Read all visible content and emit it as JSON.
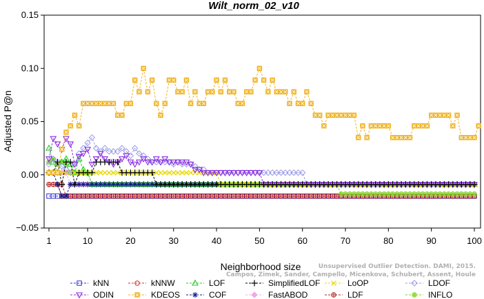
{
  "chart_data": {
    "type": "line",
    "title": "Wilt_norm_02_v10",
    "xlabel": "Neighborhood size",
    "ylabel": "Adjusted P@n",
    "xlim": [
      0,
      101
    ],
    "ylim": [
      -0.05,
      0.15
    ],
    "x_ticks": [
      1,
      10,
      20,
      30,
      40,
      50,
      60,
      70,
      80,
      90,
      100
    ],
    "y_ticks": [
      -0.05,
      0.0,
      0.05,
      0.1,
      0.15
    ],
    "y_tick_labels": [
      "−0.05",
      "0.00",
      "0.05",
      "0.10",
      "0.15"
    ],
    "x_tick_labels": [
      "1",
      "10",
      "20",
      "30",
      "40",
      "50",
      "60",
      "70",
      "80",
      "90",
      "100"
    ],
    "grid": false,
    "legend_position": "bottom",
    "watermark_lines": [
      "Unsupervised Outlier Detection. DAMI, 2015.",
      "Campos, Zimek, Sander, Campello, Micenkova, Schubert, Assent, Houle"
    ],
    "series": [
      {
        "name": "kNN",
        "color": "#2b2bd6",
        "marker": "square",
        "segments": [
          [
            1,
            100,
            -0.02
          ]
        ]
      },
      {
        "name": "kNNW",
        "color": "#d42a2a",
        "marker": "circle",
        "segments": [
          [
            1,
            3,
            -0.009
          ],
          [
            4,
            100,
            -0.02
          ]
        ]
      },
      {
        "name": "LOF",
        "color": "#22cc22",
        "marker": "triangle-up",
        "points": [
          [
            1,
            0.025
          ],
          [
            2,
            0.012
          ],
          [
            3,
            0.002
          ],
          [
            4,
            0.012
          ],
          [
            5,
            0.015
          ],
          [
            6,
            0.01
          ],
          [
            7,
            0.002
          ],
          [
            8,
            0.015
          ],
          [
            9,
            0.005
          ],
          [
            10,
            0.002
          ]
        ],
        "segments": [
          [
            11,
            100,
            -0.009
          ]
        ]
      },
      {
        "name": "SimplifiedLOF",
        "color": "#000000",
        "marker": "plus",
        "points": [
          [
            1,
            0.002
          ],
          [
            2,
            0.002
          ],
          [
            3,
            0.012
          ],
          [
            4,
            -0.009
          ],
          [
            5,
            0.012
          ],
          [
            6,
            0.012
          ],
          [
            7,
            -0.009
          ],
          [
            8,
            0.002
          ],
          [
            9,
            0.002
          ],
          [
            10,
            0.002
          ],
          [
            11,
            0.002
          ],
          [
            12,
            0.012
          ],
          [
            13,
            0.012
          ],
          [
            14,
            0.012
          ],
          [
            15,
            0.012
          ],
          [
            16,
            0.012
          ],
          [
            17,
            0.012
          ],
          [
            18,
            0.002
          ],
          [
            19,
            0.002
          ],
          [
            20,
            0.002
          ],
          [
            21,
            0.002
          ],
          [
            22,
            0.002
          ],
          [
            23,
            0.002
          ],
          [
            24,
            0.002
          ],
          [
            25,
            0.002
          ]
        ],
        "segments": [
          [
            26,
            100,
            -0.009
          ]
        ]
      },
      {
        "name": "LoOP",
        "color": "#e6d800",
        "marker": "x",
        "segments": [
          [
            1,
            28,
            0.002
          ],
          [
            29,
            40,
            0.002
          ],
          [
            41,
            100,
            -0.009
          ]
        ]
      },
      {
        "name": "LDOF",
        "color": "#9a9ae8",
        "marker": "diamond",
        "points": [
          [
            1,
            0.01
          ],
          [
            2,
            0.015
          ],
          [
            3,
            0.012
          ],
          [
            4,
            0.008
          ],
          [
            5,
            0.005
          ],
          [
            6,
            0.002
          ],
          [
            7,
            0.01
          ],
          [
            8,
            0.02
          ],
          [
            9,
            0.025
          ],
          [
            10,
            0.03
          ],
          [
            11,
            0.035
          ],
          [
            12,
            0.025
          ],
          [
            13,
            0.022
          ],
          [
            14,
            0.025
          ],
          [
            15,
            0.022
          ],
          [
            16,
            0.022
          ],
          [
            17,
            0.022
          ],
          [
            18,
            0.025
          ],
          [
            19,
            0.022
          ],
          [
            20,
            0.018
          ],
          [
            21,
            0.025
          ],
          [
            22,
            0.02
          ],
          [
            23,
            0.018
          ],
          [
            24,
            0.015
          ],
          [
            25,
            0.012
          ],
          [
            26,
            0.012
          ],
          [
            27,
            0.012
          ],
          [
            28,
            0.012
          ],
          [
            29,
            0.012
          ],
          [
            30,
            0.01
          ],
          [
            31,
            0.012
          ],
          [
            32,
            0.01
          ],
          [
            33,
            0.01
          ],
          [
            34,
            0.01
          ],
          [
            35,
            0.008
          ],
          [
            36,
            0.005
          ],
          [
            37,
            0.005
          ],
          [
            38,
            0.002
          ],
          [
            39,
            0.002
          ],
          [
            40,
            0.002
          ],
          [
            41,
            0.002
          ],
          [
            42,
            0.002
          ],
          [
            43,
            0.002
          ],
          [
            44,
            0.002
          ],
          [
            45,
            0.002
          ],
          [
            46,
            0.002
          ],
          [
            47,
            0.002
          ],
          [
            48,
            0.002
          ],
          [
            49,
            0.002
          ],
          [
            50,
            0.002
          ],
          [
            51,
            0.002
          ],
          [
            52,
            0.002
          ],
          [
            53,
            0.002
          ],
          [
            54,
            0.002
          ],
          [
            55,
            0.002
          ],
          [
            56,
            0.002
          ],
          [
            57,
            0.002
          ],
          [
            58,
            0.002
          ],
          [
            59,
            0.002
          ],
          [
            60,
            0.002
          ]
        ],
        "segments": [
          [
            61,
            100,
            -0.009
          ]
        ]
      },
      {
        "name": "ODIN",
        "color": "#8a2be2",
        "marker": "triangle-down",
        "points": [
          [
            1,
            0.015
          ],
          [
            2,
            0.034
          ],
          [
            3,
            0.029
          ],
          [
            4,
            0.024
          ],
          [
            5,
            0.034
          ],
          [
            6,
            0.029
          ],
          [
            7,
            0.01
          ],
          [
            8,
            0.017
          ],
          [
            9,
            0.02
          ],
          [
            10,
            0.024
          ],
          [
            11,
            0.01
          ],
          [
            12,
            0.015
          ],
          [
            13,
            0.02
          ],
          [
            14,
            0.015
          ],
          [
            15,
            0.012
          ],
          [
            16,
            0.01
          ],
          [
            17,
            0.012
          ],
          [
            18,
            0.015
          ],
          [
            19,
            0.018
          ],
          [
            20,
            0.012
          ],
          [
            21,
            0.01
          ],
          [
            22,
            0.012
          ],
          [
            23,
            0.015
          ],
          [
            24,
            0.012
          ],
          [
            25,
            0.012
          ],
          [
            26,
            0.015
          ],
          [
            27,
            0.012
          ],
          [
            28,
            0.015
          ],
          [
            29,
            0.012
          ],
          [
            30,
            0.012
          ],
          [
            31,
            0.012
          ],
          [
            32,
            0.012
          ],
          [
            33,
            0.012
          ],
          [
            34,
            0.01
          ],
          [
            35,
            0.005
          ],
          [
            36,
            0.005
          ],
          [
            37,
            0.002
          ],
          [
            38,
            0.002
          ],
          [
            39,
            0.002
          ],
          [
            40,
            0.002
          ],
          [
            41,
            0.002
          ],
          [
            42,
            0.002
          ],
          [
            43,
            0.002
          ],
          [
            44,
            0.002
          ],
          [
            45,
            0.002
          ],
          [
            46,
            0.002
          ],
          [
            47,
            0.002
          ],
          [
            48,
            0.002
          ],
          [
            49,
            0.002
          ],
          [
            50,
            0.002
          ]
        ],
        "segments": [
          [
            51,
            100,
            -0.009
          ]
        ]
      },
      {
        "name": "KDEOS",
        "color": "#f0b21e",
        "marker": "square-x",
        "points": [
          [
            1,
            0.002
          ],
          [
            2,
            0.002
          ],
          [
            3,
            0.002
          ],
          [
            4,
            0.024
          ],
          [
            5,
            0.04
          ],
          [
            6,
            0.046
          ],
          [
            7,
            0.056
          ],
          [
            8,
            0.046
          ],
          [
            9,
            0.067
          ],
          [
            10,
            0.067
          ],
          [
            11,
            0.067
          ],
          [
            12,
            0.067
          ],
          [
            13,
            0.067
          ],
          [
            14,
            0.067
          ],
          [
            15,
            0.067
          ],
          [
            16,
            0.067
          ],
          [
            17,
            0.056
          ],
          [
            18,
            0.056
          ],
          [
            19,
            0.067
          ],
          [
            20,
            0.067
          ],
          [
            21,
            0.089
          ],
          [
            22,
            0.078
          ],
          [
            23,
            0.1
          ],
          [
            24,
            0.078
          ],
          [
            25,
            0.089
          ],
          [
            26,
            0.067
          ],
          [
            27,
            0.056
          ],
          [
            28,
            0.067
          ],
          [
            29,
            0.089
          ],
          [
            30,
            0.089
          ],
          [
            31,
            0.078
          ],
          [
            32,
            0.078
          ],
          [
            33,
            0.089
          ],
          [
            34,
            0.067
          ],
          [
            35,
            0.078
          ],
          [
            36,
            0.067
          ],
          [
            37,
            0.067
          ],
          [
            38,
            0.078
          ],
          [
            39,
            0.078
          ],
          [
            40,
            0.089
          ],
          [
            41,
            0.078
          ],
          [
            42,
            0.089
          ],
          [
            43,
            0.078
          ],
          [
            44,
            0.078
          ],
          [
            45,
            0.067
          ],
          [
            46,
            0.067
          ],
          [
            47,
            0.078
          ],
          [
            48,
            0.078
          ],
          [
            49,
            0.089
          ],
          [
            50,
            0.1
          ],
          [
            51,
            0.089
          ],
          [
            52,
            0.078
          ],
          [
            53,
            0.089
          ],
          [
            54,
            0.078
          ],
          [
            55,
            0.078
          ],
          [
            56,
            0.078
          ],
          [
            57,
            0.067
          ],
          [
            58,
            0.078
          ],
          [
            59,
            0.067
          ],
          [
            60,
            0.067
          ],
          [
            61,
            0.078
          ],
          [
            62,
            0.067
          ],
          [
            63,
            0.056
          ],
          [
            64,
            0.056
          ],
          [
            65,
            0.046
          ],
          [
            66,
            0.056
          ],
          [
            67,
            0.056
          ],
          [
            68,
            0.056
          ],
          [
            69,
            0.056
          ],
          [
            70,
            0.056
          ],
          [
            71,
            0.056
          ],
          [
            72,
            0.056
          ],
          [
            73,
            0.035
          ],
          [
            74,
            0.046
          ],
          [
            75,
            0.035
          ],
          [
            76,
            0.046
          ],
          [
            77,
            0.046
          ],
          [
            78,
            0.046
          ],
          [
            79,
            0.046
          ],
          [
            80,
            0.046
          ],
          [
            81,
            0.035
          ],
          [
            82,
            0.035
          ],
          [
            83,
            0.035
          ],
          [
            84,
            0.035
          ],
          [
            85,
            0.035
          ],
          [
            86,
            0.046
          ],
          [
            87,
            0.046
          ],
          [
            88,
            0.046
          ],
          [
            89,
            0.046
          ],
          [
            90,
            0.056
          ],
          [
            91,
            0.056
          ],
          [
            92,
            0.056
          ],
          [
            93,
            0.056
          ],
          [
            94,
            0.056
          ],
          [
            95,
            0.046
          ],
          [
            96,
            0.056
          ],
          [
            97,
            0.035
          ],
          [
            98,
            0.035
          ],
          [
            99,
            0.035
          ],
          [
            100,
            0.035
          ],
          [
            101,
            0.046
          ]
        ]
      },
      {
        "name": "COF",
        "color": "#0a1a8c",
        "marker": "asterisk",
        "points": [
          [
            1,
            0.002
          ],
          [
            2,
            0.002
          ],
          [
            3,
            -0.009
          ],
          [
            4,
            -0.02
          ],
          [
            5,
            -0.02
          ],
          [
            6,
            -0.009
          ],
          [
            7,
            -0.009
          ],
          [
            8,
            -0.009
          ],
          [
            9,
            -0.009
          ]
        ],
        "segments": [
          [
            10,
            100,
            -0.009
          ]
        ]
      },
      {
        "name": "FastABOD",
        "color": "#f2a7e8",
        "marker": "diamond-filled",
        "segments": [
          [
            1,
            5,
            0.002
          ],
          [
            6,
            100,
            -0.009
          ]
        ]
      },
      {
        "name": "LDF",
        "color": "#b22222",
        "marker": "circle-plus",
        "segments": [
          [
            1,
            4,
            -0.009
          ],
          [
            5,
            100,
            -0.02
          ]
        ]
      },
      {
        "name": "INFLO",
        "color": "#7ed321",
        "marker": "star-circle",
        "points": [
          [
            1,
            0.012
          ],
          [
            2,
            0.015
          ],
          [
            3,
            0.01
          ],
          [
            4,
            0.012
          ],
          [
            5,
            0.01
          ],
          [
            6,
            0.002
          ],
          [
            7,
            0.002
          ],
          [
            8,
            0.002
          ],
          [
            9,
            0.002
          ],
          [
            10,
            0.002
          ]
        ],
        "segments": [
          [
            11,
            68,
            -0.009
          ],
          [
            69,
            100,
            -0.018
          ]
        ]
      }
    ]
  }
}
